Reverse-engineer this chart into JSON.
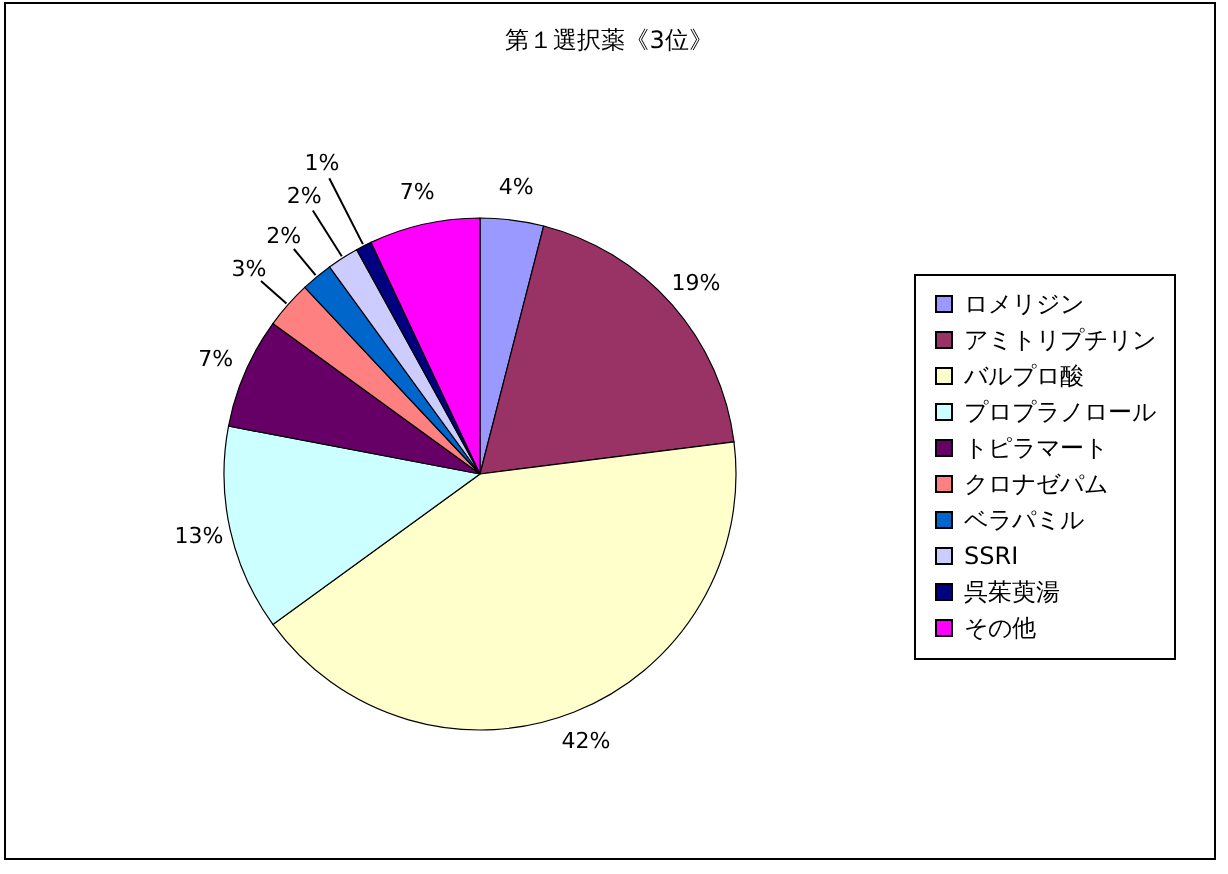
{
  "chart_data": {
    "type": "pie",
    "title": "第１選択薬《3位》",
    "categories": [
      "ロメリジン",
      "アミトリプチリン",
      "バルプロ酸",
      "プロプラノロール",
      "トピラマート",
      "クロナゼパム",
      "ベラパミル",
      "SSRI",
      "呉茱萸湯",
      "その他"
    ],
    "values": [
      4,
      19,
      42,
      13,
      7,
      3,
      2,
      2,
      1,
      7
    ],
    "colors": [
      "#9999ff",
      "#993366",
      "#ffffcc",
      "#ccffff",
      "#660066",
      "#ff8080",
      "#0066cc",
      "#ccccff",
      "#000080",
      "#ff00ff"
    ],
    "value_labels": [
      "4%",
      "19%",
      "42%",
      "13%",
      "7%",
      "3%",
      "2%",
      "2%",
      "1%",
      "7%"
    ],
    "legend": "right"
  }
}
